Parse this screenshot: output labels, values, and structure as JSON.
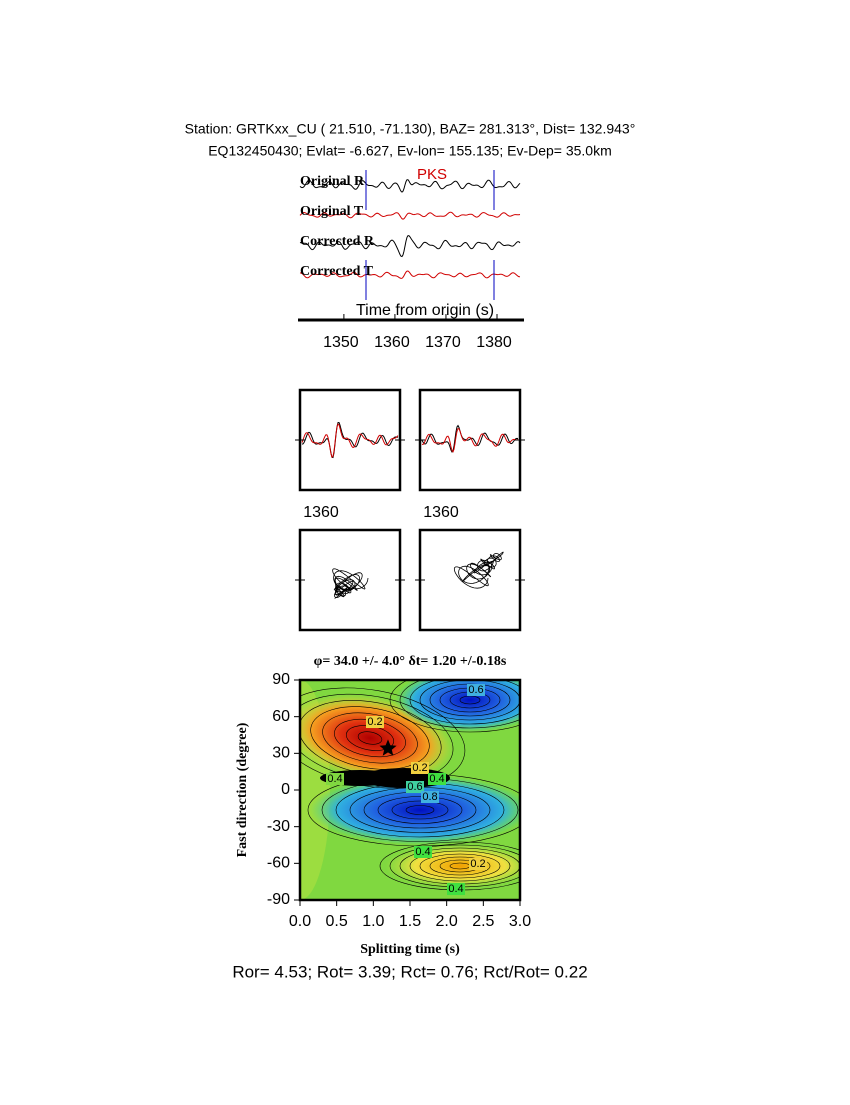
{
  "header": {
    "station_line": "Station: GRTKxx_CU (  21.510,  -71.130), BAZ=  281.313°, Dist=  132.943°",
    "event_line": "EQ132450430; Evlat=  -6.627, Ev-lon= 155.135; Ev-Dep= 35.0km"
  },
  "waveforms": {
    "trace_labels": [
      "Original R",
      "Original T",
      "Corrected R",
      "Corrected T"
    ],
    "phase": "PKS",
    "xlabel": "Time from origin (s)",
    "xlim": [
      1341.4,
      1384.9
    ],
    "xticks": [
      1350,
      1360,
      1370,
      1380
    ]
  },
  "comparison": {
    "time_labels": [
      1360,
      1360
    ]
  },
  "grid_search": {
    "title": "φ= 34.0 +/- 4.0° δt= 1.20 +/-0.18s",
    "xlabel": "Splitting time (s)",
    "ylabel": "Fast direction (degree)",
    "xlim": [
      0,
      3
    ],
    "ylim": [
      -90,
      90
    ],
    "xticks": [
      {
        "value": 0,
        "label": "0.0"
      },
      0.5,
      {
        "value": 1,
        "label": "1.0"
      },
      1.5,
      {
        "value": 2,
        "label": "2.0"
      },
      2.5,
      {
        "value": 3,
        "label": "3.0"
      }
    ],
    "yticks": [
      -90,
      -60,
      -30,
      0,
      30,
      60,
      90
    ],
    "best": {
      "dt": 1.2,
      "phi": 34
    },
    "contour_labels": [
      "0.2",
      "0.4",
      "0.6",
      "0.2",
      "0.4",
      "0.6",
      "0.8",
      "0.4",
      "0.2",
      "0.4"
    ]
  },
  "footer": "Ror= 4.53; Rot= 3.39; Rct= 0.76; Rct/Rot= 0.22"
}
